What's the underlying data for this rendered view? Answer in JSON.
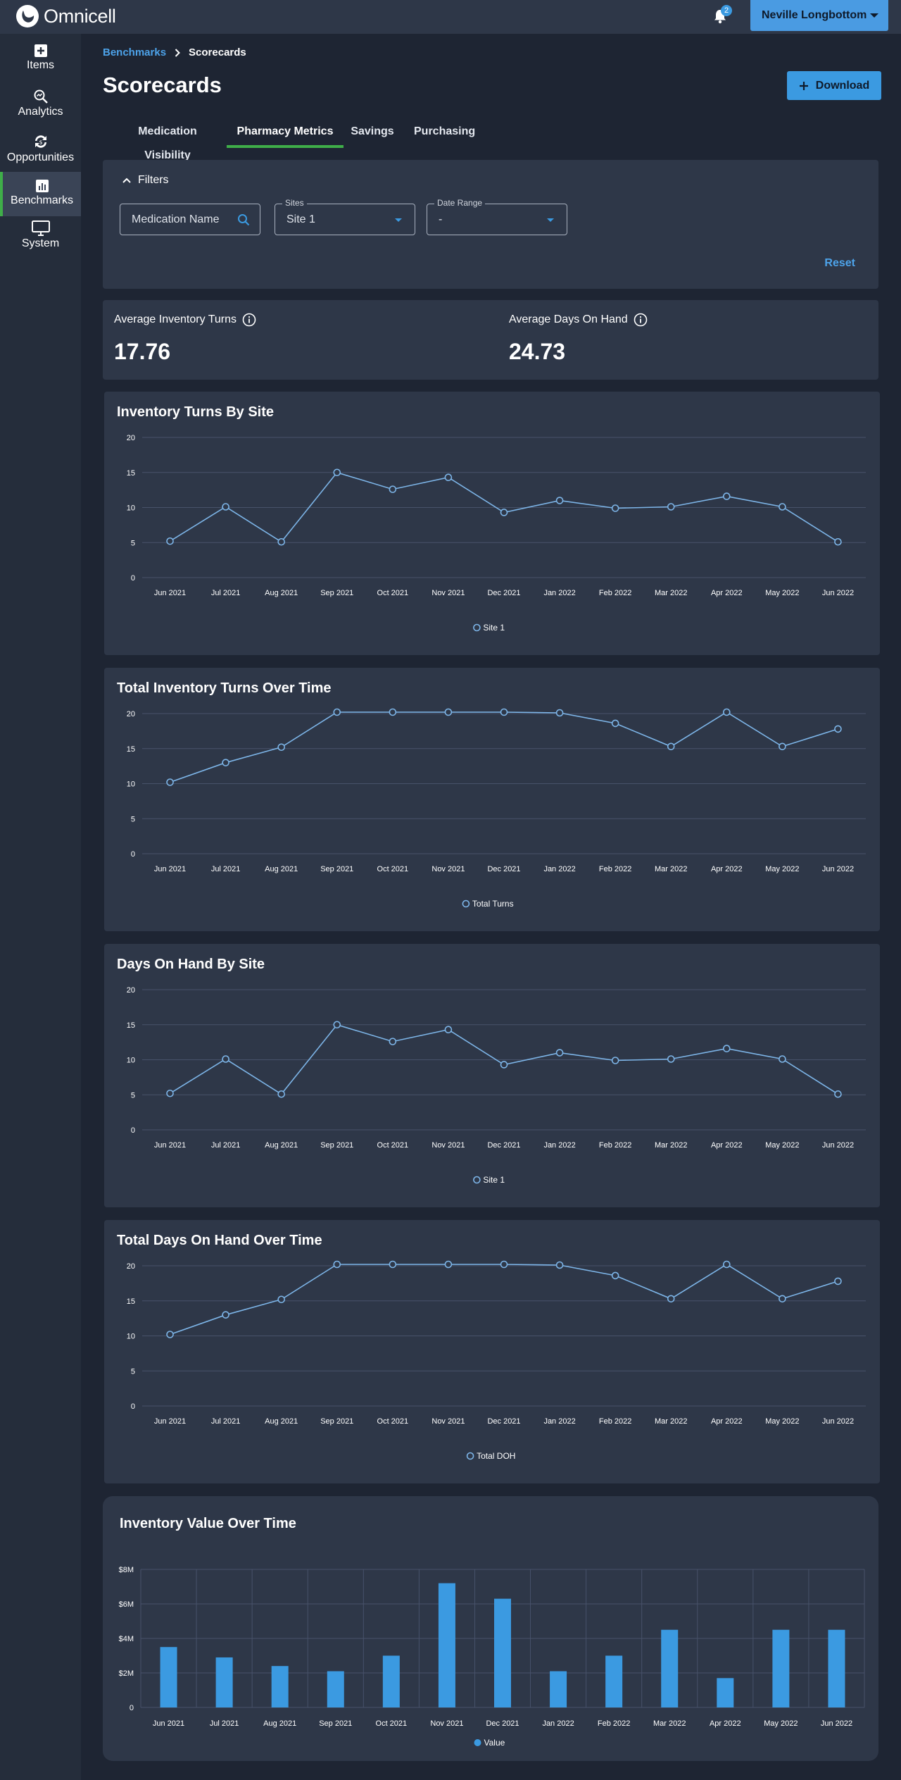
{
  "app": {
    "name": "Omnicell"
  },
  "header": {
    "notification_count": "2",
    "user_name": "Neville Longbottom"
  },
  "sidebar": {
    "items": [
      {
        "label": "Items",
        "icon": "add-box-icon"
      },
      {
        "label": "Analytics",
        "icon": "analytics-icon"
      },
      {
        "label": "Opportunities",
        "icon": "opportunities-icon"
      },
      {
        "label": "Benchmarks",
        "icon": "benchmarks-icon",
        "active": true
      },
      {
        "label": "System",
        "icon": "monitor-icon"
      }
    ]
  },
  "breadcrumb": {
    "parent": "Benchmarks",
    "current": "Scorecards"
  },
  "page": {
    "title": "Scorecards",
    "download_label": "Download"
  },
  "tabs": [
    {
      "label": "Medication Visibility"
    },
    {
      "label": "Pharmacy Metrics",
      "active": true
    },
    {
      "label": "Savings"
    },
    {
      "label": "Purchasing"
    }
  ],
  "filters": {
    "toggle_label": "Filters",
    "medication_placeholder": "Medication Name",
    "sites_label": "Sites",
    "sites_value": "Site 1",
    "date_range_label": "Date Range",
    "date_range_value": "-",
    "reset_label": "Reset"
  },
  "kpis": {
    "avg_inventory_turns_label": "Average Inventory Turns",
    "avg_inventory_turns_value": "17.76",
    "avg_days_on_hand_label": "Average Days On Hand",
    "avg_days_on_hand_value": "24.73"
  },
  "colors": {
    "accent": "#3b9ae1",
    "line": "#7db5e8",
    "active_tab": "#3fae49",
    "bar": "#3b9ae1"
  },
  "chart_data": [
    {
      "type": "line",
      "title": "Inventory Turns By Site",
      "categories": [
        "Jun 2021",
        "Jul 2021",
        "Aug 2021",
        "Sep 2021",
        "Oct 2021",
        "Nov 2021",
        "Dec 2021",
        "Jan 2022",
        "Feb 2022",
        "Mar 2022",
        "Apr 2022",
        "May 2022",
        "Jun 2022"
      ],
      "series": [
        {
          "name": "Site 1",
          "values": [
            5.2,
            10.1,
            5.1,
            15.0,
            12.6,
            14.3,
            9.3,
            11.0,
            9.9,
            10.1,
            11.6,
            10.1,
            5.1
          ]
        }
      ],
      "yticks": [
        "0",
        "5",
        "10",
        "15",
        "20"
      ],
      "ylim": [
        0,
        20
      ]
    },
    {
      "type": "line",
      "title": "Total Inventory Turns Over Time",
      "categories": [
        "Jun 2021",
        "Jul 2021",
        "Aug 2021",
        "Sep 2021",
        "Oct 2021",
        "Nov 2021",
        "Dec 2021",
        "Jan 2022",
        "Feb 2022",
        "Mar 2022",
        "Apr 2022",
        "May 2022",
        "Jun 2022"
      ],
      "series": [
        {
          "name": "Total Turns",
          "values": [
            10.2,
            13.0,
            15.2,
            20.2,
            20.2,
            20.2,
            20.2,
            20.1,
            18.6,
            15.3,
            20.2,
            15.3,
            17.8
          ]
        }
      ],
      "yticks": [
        "0",
        "5",
        "10",
        "15",
        "20"
      ],
      "ylim": [
        0,
        20
      ]
    },
    {
      "type": "line",
      "title": "Days On Hand By Site",
      "categories": [
        "Jun 2021",
        "Jul 2021",
        "Aug 2021",
        "Sep 2021",
        "Oct 2021",
        "Nov 2021",
        "Dec 2021",
        "Jan 2022",
        "Feb 2022",
        "Mar 2022",
        "Apr 2022",
        "May 2022",
        "Jun 2022"
      ],
      "series": [
        {
          "name": "Site 1",
          "values": [
            5.2,
            10.1,
            5.1,
            15.0,
            12.6,
            14.3,
            9.3,
            11.0,
            9.9,
            10.1,
            11.6,
            10.1,
            5.1
          ]
        }
      ],
      "yticks": [
        "0",
        "5",
        "10",
        "15",
        "20"
      ],
      "ylim": [
        0,
        20
      ]
    },
    {
      "type": "line",
      "title": "Total Days On Hand Over Time",
      "categories": [
        "Jun 2021",
        "Jul 2021",
        "Aug 2021",
        "Sep 2021",
        "Oct 2021",
        "Nov 2021",
        "Dec 2021",
        "Jan 2022",
        "Feb 2022",
        "Mar 2022",
        "Apr 2022",
        "May 2022",
        "Jun 2022"
      ],
      "series": [
        {
          "name": "Total DOH",
          "values": [
            10.2,
            13.0,
            15.2,
            20.2,
            20.2,
            20.2,
            20.2,
            20.1,
            18.6,
            15.3,
            20.2,
            15.3,
            17.8
          ]
        }
      ],
      "yticks": [
        "0",
        "5",
        "10",
        "15",
        "20"
      ],
      "ylim": [
        0,
        20
      ]
    },
    {
      "type": "bar",
      "title": "Inventory Value Over Time",
      "categories": [
        "Jun 2021",
        "Jul 2021",
        "Aug 2021",
        "Sep 2021",
        "Oct 2021",
        "Nov 2021",
        "Dec 2021",
        "Jan 2022",
        "Feb 2022",
        "Mar 2022",
        "Apr 2022",
        "May 2022",
        "Jun 2022"
      ],
      "series": [
        {
          "name": "Value",
          "values": [
            3.5,
            2.9,
            2.4,
            2.1,
            3.0,
            7.2,
            6.3,
            2.1,
            3.0,
            4.5,
            1.7,
            4.5,
            4.5
          ]
        }
      ],
      "yticks": [
        "0",
        "$2M",
        "$4M",
        "$6M",
        "$8M"
      ],
      "ylim": [
        0,
        8
      ],
      "unit": "millions USD"
    }
  ]
}
